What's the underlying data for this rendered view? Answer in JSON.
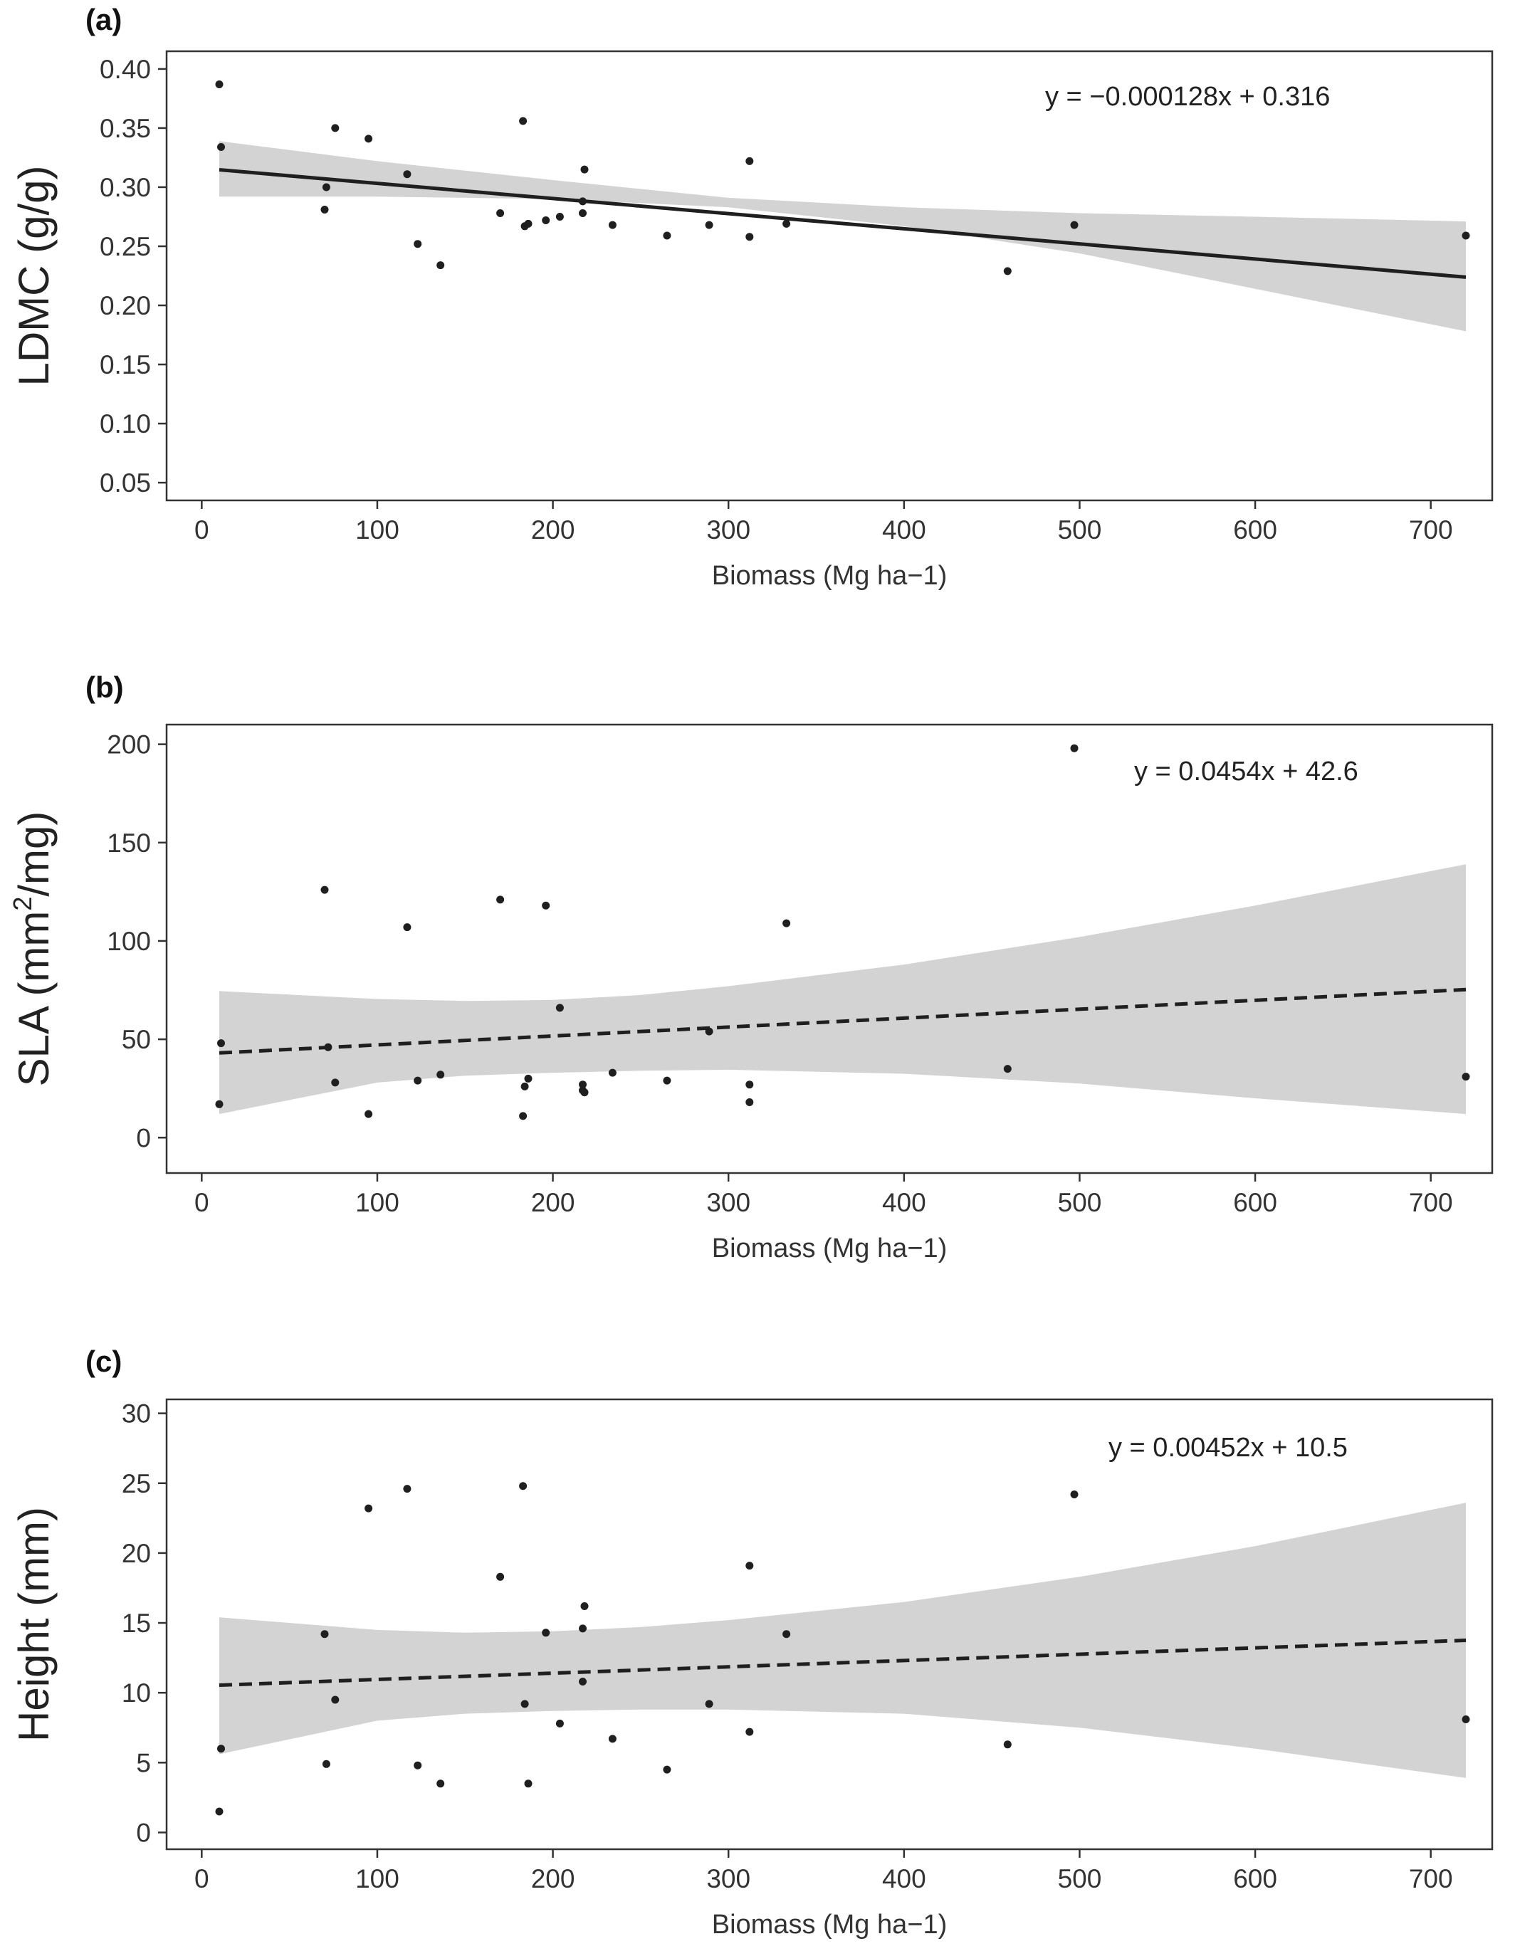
{
  "chart_data": [
    {
      "type": "scatter",
      "panel_label": "(a)",
      "xlabel": "Biomass (Mg ha−1)",
      "ylabel": "LDMC (g/g)",
      "xlim": [
        -20,
        735
      ],
      "ylim": [
        0.035,
        0.415
      ],
      "xticks": [
        0,
        100,
        200,
        300,
        400,
        500,
        600,
        700
      ],
      "yticks": [
        0.05,
        0.1,
        0.15,
        0.2,
        0.25,
        0.3,
        0.35,
        0.4
      ],
      "ytick_labels": [
        "0.05",
        "0.10",
        "0.15",
        "0.20",
        "0.25",
        "0.30",
        "0.35",
        "0.40"
      ],
      "equation": "y = −0.000128x + 0.316",
      "fit": {
        "slope": -0.000128,
        "intercept": 0.316,
        "line_style": "solid",
        "x_range": [
          10,
          720
        ]
      },
      "confidence_band": {
        "x": [
          10,
          100,
          200,
          300,
          400,
          500,
          600,
          720
        ],
        "upper": [
          0.339,
          0.322,
          0.306,
          0.291,
          0.283,
          0.278,
          0.275,
          0.271
        ],
        "lower": [
          0.292,
          0.292,
          0.29,
          0.283,
          0.267,
          0.244,
          0.214,
          0.178
        ]
      },
      "points": [
        {
          "x": 10,
          "y": 0.387
        },
        {
          "x": 11,
          "y": 0.334
        },
        {
          "x": 70,
          "y": 0.281
        },
        {
          "x": 71,
          "y": 0.3
        },
        {
          "x": 76,
          "y": 0.35
        },
        {
          "x": 95,
          "y": 0.341
        },
        {
          "x": 117,
          "y": 0.311
        },
        {
          "x": 123,
          "y": 0.252
        },
        {
          "x": 136,
          "y": 0.234
        },
        {
          "x": 170,
          "y": 0.278
        },
        {
          "x": 183,
          "y": 0.356
        },
        {
          "x": 184,
          "y": 0.267
        },
        {
          "x": 186,
          "y": 0.269
        },
        {
          "x": 196,
          "y": 0.272
        },
        {
          "x": 204,
          "y": 0.275
        },
        {
          "x": 217,
          "y": 0.288
        },
        {
          "x": 217,
          "y": 0.278
        },
        {
          "x": 218,
          "y": 0.315
        },
        {
          "x": 234,
          "y": 0.268
        },
        {
          "x": 265,
          "y": 0.259
        },
        {
          "x": 289,
          "y": 0.268
        },
        {
          "x": 312,
          "y": 0.258
        },
        {
          "x": 312,
          "y": 0.322
        },
        {
          "x": 333,
          "y": 0.269
        },
        {
          "x": 459,
          "y": 0.229
        },
        {
          "x": 497,
          "y": 0.268
        },
        {
          "x": 720,
          "y": 0.259
        }
      ]
    },
    {
      "type": "scatter",
      "panel_label": "(b)",
      "xlabel": "Biomass (Mg ha−1)",
      "ylabel_parts": {
        "before": "SLA (mm",
        "superscript": "2",
        "after": "/mg)"
      },
      "xlim": [
        -20,
        735
      ],
      "ylim": [
        -18,
        210
      ],
      "xticks": [
        0,
        100,
        200,
        300,
        400,
        500,
        600,
        700
      ],
      "yticks": [
        0,
        50,
        100,
        150,
        200
      ],
      "ytick_labels": [
        "0",
        "50",
        "100",
        "150",
        "200"
      ],
      "equation": "y = 0.0454x + 42.6",
      "fit": {
        "slope": 0.0454,
        "intercept": 42.6,
        "line_style": "dashed",
        "x_range": [
          10,
          720
        ]
      },
      "confidence_band": {
        "x": [
          10,
          100,
          150,
          200,
          250,
          300,
          400,
          500,
          600,
          720
        ],
        "upper": [
          74.5,
          70.5,
          69.5,
          70.0,
          72.5,
          77.0,
          88.0,
          102.0,
          118.0,
          139.0
        ],
        "lower": [
          12.0,
          28.0,
          31.5,
          33.0,
          34.0,
          34.5,
          32.5,
          27.5,
          20.0,
          12.0
        ]
      },
      "points": [
        {
          "x": 10,
          "y": 17
        },
        {
          "x": 11,
          "y": 48
        },
        {
          "x": 70,
          "y": 126
        },
        {
          "x": 72,
          "y": 46
        },
        {
          "x": 76,
          "y": 28
        },
        {
          "x": 95,
          "y": 12
        },
        {
          "x": 117,
          "y": 107
        },
        {
          "x": 123,
          "y": 29
        },
        {
          "x": 136,
          "y": 32
        },
        {
          "x": 170,
          "y": 121
        },
        {
          "x": 183,
          "y": 11
        },
        {
          "x": 184,
          "y": 26
        },
        {
          "x": 186,
          "y": 30
        },
        {
          "x": 196,
          "y": 118
        },
        {
          "x": 204,
          "y": 66
        },
        {
          "x": 217,
          "y": 27
        },
        {
          "x": 217,
          "y": 24
        },
        {
          "x": 218,
          "y": 23
        },
        {
          "x": 234,
          "y": 33
        },
        {
          "x": 265,
          "y": 29
        },
        {
          "x": 289,
          "y": 54
        },
        {
          "x": 312,
          "y": 27
        },
        {
          "x": 312,
          "y": 18
        },
        {
          "x": 333,
          "y": 109
        },
        {
          "x": 459,
          "y": 35
        },
        {
          "x": 497,
          "y": 198
        },
        {
          "x": 720,
          "y": 31
        }
      ]
    },
    {
      "type": "scatter",
      "panel_label": "(c)",
      "xlabel": "Biomass (Mg ha−1)",
      "ylabel": "Height (mm)",
      "xlim": [
        -20,
        735
      ],
      "ylim": [
        -1.2,
        31
      ],
      "xticks": [
        0,
        100,
        200,
        300,
        400,
        500,
        600,
        700
      ],
      "yticks": [
        0,
        5,
        10,
        15,
        20,
        25,
        30
      ],
      "ytick_labels": [
        "0",
        "5",
        "10",
        "15",
        "20",
        "25",
        "30"
      ],
      "equation": "y = 0.00452x + 10.5",
      "fit": {
        "slope": 0.00452,
        "intercept": 10.5,
        "line_style": "dashed",
        "x_range": [
          10,
          720
        ]
      },
      "confidence_band": {
        "x": [
          10,
          100,
          150,
          200,
          250,
          300,
          400,
          500,
          600,
          720
        ],
        "upper": [
          15.4,
          14.5,
          14.3,
          14.4,
          14.7,
          15.2,
          16.5,
          18.3,
          20.5,
          23.6
        ],
        "lower": [
          5.6,
          8.0,
          8.5,
          8.7,
          8.8,
          8.8,
          8.5,
          7.5,
          6.0,
          3.9
        ]
      },
      "points": [
        {
          "x": 10,
          "y": 1.5
        },
        {
          "x": 11,
          "y": 6.0
        },
        {
          "x": 70,
          "y": 14.2
        },
        {
          "x": 71,
          "y": 4.9
        },
        {
          "x": 76,
          "y": 9.5
        },
        {
          "x": 95,
          "y": 23.2
        },
        {
          "x": 117,
          "y": 24.6
        },
        {
          "x": 123,
          "y": 4.8
        },
        {
          "x": 136,
          "y": 3.5
        },
        {
          "x": 170,
          "y": 18.3
        },
        {
          "x": 183,
          "y": 24.8
        },
        {
          "x": 184,
          "y": 9.2
        },
        {
          "x": 186,
          "y": 3.5
        },
        {
          "x": 196,
          "y": 14.3
        },
        {
          "x": 204,
          "y": 7.8
        },
        {
          "x": 217,
          "y": 14.6
        },
        {
          "x": 217,
          "y": 10.8
        },
        {
          "x": 218,
          "y": 16.2
        },
        {
          "x": 234,
          "y": 6.7
        },
        {
          "x": 265,
          "y": 4.5
        },
        {
          "x": 289,
          "y": 9.2
        },
        {
          "x": 312,
          "y": 7.2
        },
        {
          "x": 312,
          "y": 19.1
        },
        {
          "x": 333,
          "y": 14.2
        },
        {
          "x": 459,
          "y": 6.3
        },
        {
          "x": 497,
          "y": 24.2
        },
        {
          "x": 720,
          "y": 8.1
        }
      ]
    }
  ],
  "colors": {
    "points": "#1f1f1f",
    "fit_line": "#1f1f1f",
    "confidence_band": "#d3d3d3",
    "axis": "#333333",
    "background": "#ffffff"
  }
}
